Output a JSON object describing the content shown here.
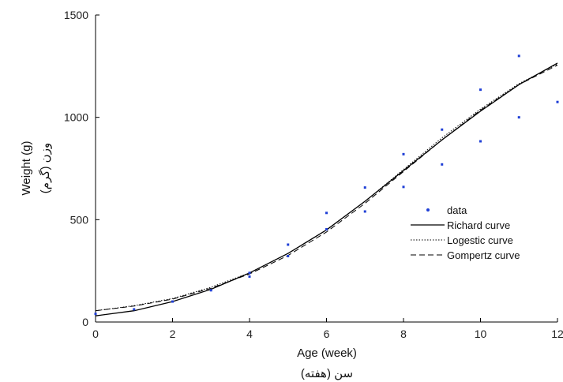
{
  "chart_data": {
    "type": "scatter",
    "xlabel": "Age (week)",
    "xlabel_secondary": "سن (هفته)",
    "ylabel": "Weight (g)",
    "ylabel_secondary": "وزن (گرم)",
    "xlim": [
      0,
      12
    ],
    "ylim": [
      0,
      1500
    ],
    "xticks": [
      0,
      2,
      4,
      6,
      8,
      10,
      12
    ],
    "yticks": [
      0,
      500,
      1000,
      1500
    ],
    "grid": false,
    "legend_position": "right-middle",
    "points": {
      "name": "data",
      "color": "#1f3fd6",
      "x": [
        0,
        1,
        2,
        3,
        4,
        4,
        5,
        5,
        6,
        6,
        7,
        7,
        8,
        8,
        9,
        9,
        10,
        10,
        11,
        11,
        12
      ],
      "y": [
        40,
        62,
        100,
        155,
        222,
        240,
        322,
        378,
        453,
        533,
        540,
        657,
        660,
        820,
        770,
        940,
        883,
        1135,
        1000,
        1300,
        1075
      ]
    },
    "series": [
      {
        "name": "Richard curve",
        "style": "solid",
        "x": [
          0,
          1,
          2,
          3,
          4,
          5,
          6,
          7,
          8,
          9,
          10,
          11,
          12
        ],
        "y": [
          30,
          55,
          100,
          160,
          240,
          335,
          450,
          590,
          740,
          890,
          1030,
          1160,
          1265
        ]
      },
      {
        "name": "Logestic curve",
        "style": "dotted",
        "x": [
          0,
          1,
          2,
          3,
          4,
          5,
          6,
          7,
          8,
          9,
          10,
          11,
          12
        ],
        "y": [
          55,
          80,
          115,
          170,
          240,
          335,
          450,
          590,
          745,
          900,
          1040,
          1165,
          1260
        ]
      },
      {
        "name": "Gompertz curve",
        "style": "dashed",
        "x": [
          0,
          1,
          2,
          3,
          4,
          5,
          6,
          7,
          8,
          9,
          10,
          11,
          12
        ],
        "y": [
          55,
          78,
          112,
          165,
          235,
          325,
          440,
          580,
          735,
          890,
          1035,
          1160,
          1255
        ]
      }
    ],
    "legend": [
      "data",
      "Richard curve",
      "Logestic curve",
      "Gompertz curve"
    ]
  }
}
